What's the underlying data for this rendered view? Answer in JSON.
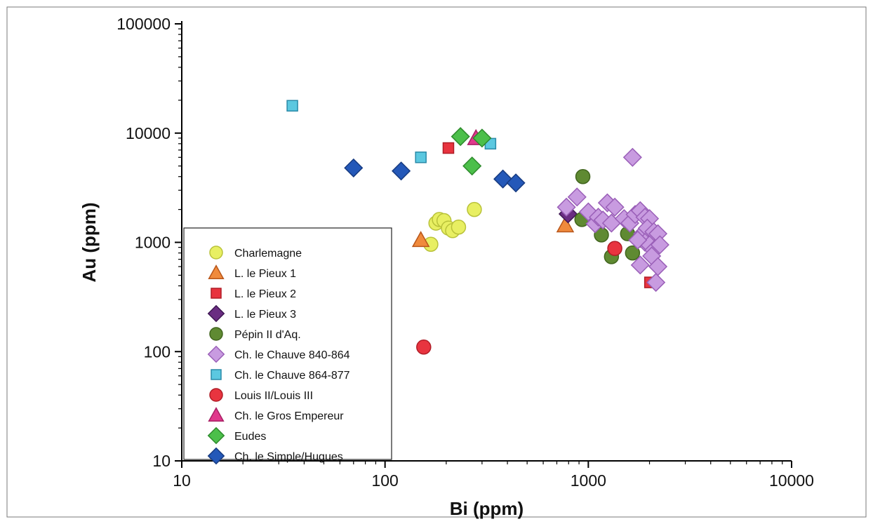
{
  "chart_data": {
    "type": "scatter",
    "xlabel": "Bi (ppm)",
    "ylabel": "Au (ppm)",
    "xscale": "log",
    "yscale": "log",
    "xlim": [
      10,
      10000
    ],
    "ylim": [
      10,
      100000
    ],
    "x_ticks": [
      "10",
      "100",
      "1000",
      "10000"
    ],
    "y_ticks": [
      "10",
      "100",
      "1000",
      "10000",
      "100000"
    ],
    "legend_position": "bottom-left",
    "grid": false,
    "series": [
      {
        "name": "Charlemagne",
        "marker": "circle",
        "color": "#e8ef62",
        "stroke": "#b9c23a",
        "points": [
          [
            168,
            960
          ],
          [
            178,
            1500
          ],
          [
            185,
            1620
          ],
          [
            195,
            1580
          ],
          [
            205,
            1350
          ],
          [
            215,
            1280
          ],
          [
            230,
            1380
          ],
          [
            275,
            2000
          ]
        ]
      },
      {
        "name": "L. le Pieux 1",
        "marker": "triangle",
        "color": "#f08a3c",
        "stroke": "#b8561a",
        "points": [
          [
            150,
            1050
          ],
          [
            770,
            1430
          ]
        ]
      },
      {
        "name": "L. le Pieux 2",
        "marker": "square",
        "color": "#e8343f",
        "stroke": "#b01d27",
        "points": [
          [
            205,
            7300
          ],
          [
            2010,
            430
          ]
        ]
      },
      {
        "name": "L. le Pieux 3",
        "marker": "diamond",
        "color": "#6a2d82",
        "stroke": "#3d1552",
        "points": [
          [
            795,
            1820
          ]
        ]
      },
      {
        "name": "Pépin II d'Aq.",
        "marker": "circle",
        "color": "#5f8a32",
        "stroke": "#41651e",
        "points": [
          [
            940,
            4000
          ],
          [
            930,
            1620
          ],
          [
            1160,
            1170
          ],
          [
            1300,
            740
          ],
          [
            1560,
            1200
          ],
          [
            1650,
            800
          ],
          [
            1800,
            1050
          ]
        ]
      },
      {
        "name": "Ch. le Chauve 840-864",
        "marker": "diamond",
        "color": "#c89be0",
        "stroke": "#9a5fb8",
        "points": [
          [
            1650,
            6000
          ],
          [
            780,
            2100
          ],
          [
            880,
            2600
          ],
          [
            1000,
            1900
          ],
          [
            1080,
            1480
          ],
          [
            1120,
            1700
          ],
          [
            1180,
            1600
          ],
          [
            1240,
            2300
          ],
          [
            1300,
            1500
          ],
          [
            1350,
            2100
          ],
          [
            1500,
            1650
          ],
          [
            1600,
            1500
          ],
          [
            1700,
            1800
          ],
          [
            1800,
            1950
          ],
          [
            1900,
            1700
          ],
          [
            2000,
            1650
          ],
          [
            1850,
            1200
          ],
          [
            1950,
            1350
          ],
          [
            2100,
            1250
          ],
          [
            2200,
            1200
          ],
          [
            1900,
            1000
          ],
          [
            2000,
            950
          ],
          [
            2100,
            850
          ],
          [
            2250,
            950
          ],
          [
            1800,
            620
          ],
          [
            2050,
            750
          ],
          [
            2200,
            600
          ],
          [
            2150,
            430
          ],
          [
            1750,
            1050
          ]
        ]
      },
      {
        "name": "Ch. le Chauve 864-877",
        "marker": "square",
        "color": "#5bc8e0",
        "stroke": "#2a8aa8",
        "points": [
          [
            35,
            17800
          ],
          [
            150,
            6000
          ],
          [
            330,
            8000
          ]
        ]
      },
      {
        "name": "Louis II/Louis III",
        "marker": "circle",
        "color": "#e8343f",
        "stroke": "#b01d27",
        "points": [
          [
            155,
            110
          ],
          [
            1350,
            880
          ]
        ]
      },
      {
        "name": "Ch. le Gros Empereur",
        "marker": "triangle",
        "color": "#e0388c",
        "stroke": "#a81f64",
        "points": [
          [
            280,
            9000
          ]
        ]
      },
      {
        "name": "Eudes",
        "marker": "diamond",
        "color": "#4cbf4a",
        "stroke": "#2d8a2b",
        "points": [
          [
            235,
            9300
          ],
          [
            300,
            9000
          ],
          [
            268,
            5000
          ]
        ]
      },
      {
        "name": "Ch. le Simple/Hugues",
        "marker": "diamond",
        "color": "#2458b8",
        "stroke": "#163a80",
        "points": [
          [
            70,
            4800
          ],
          [
            120,
            4500
          ],
          [
            380,
            3800
          ],
          [
            440,
            3500
          ]
        ]
      }
    ]
  }
}
